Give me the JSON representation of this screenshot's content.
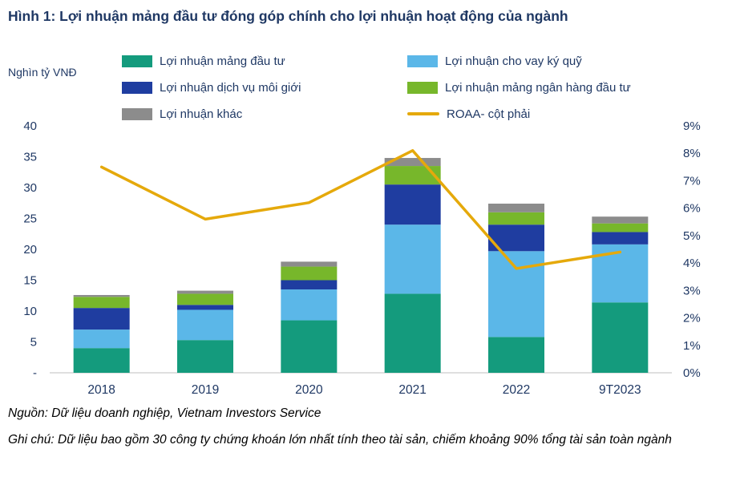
{
  "title": "Hình 1: Lợi nhuận mảng đầu tư đóng góp chính cho lợi nhuận hoạt động của ngành",
  "unit_label": "Nghìn tỷ VNĐ",
  "notes": {
    "source": "Nguồn: Dữ liệu doanh nghiệp, Vietnam Investors Service",
    "detail": "Ghi chú: Dữ liệu bao gồm 30 công ty chứng khoán lớn nhất tính theo tài sản, chiếm khoảng 90% tổng tài sản toàn ngành"
  },
  "colors": {
    "title_text": "#1F3864",
    "axis_text": "#1F3864",
    "baseline": "#BFBFBF",
    "investment": "#149B7D",
    "margin_lending": "#5BB7E8",
    "brokerage": "#1F3DA0",
    "investment_banking": "#77B72B",
    "other": "#8C8C8C",
    "roaa_line": "#E5A90B"
  },
  "legend": {
    "columns": [
      [
        {
          "label": "Lợi nhuận mảng đầu tư",
          "color": "#149B7D",
          "type": "rect"
        },
        {
          "label": "Lợi nhuận dịch vụ môi giới",
          "color": "#1F3DA0",
          "type": "rect"
        },
        {
          "label": "Lợi nhuận khác",
          "color": "#8C8C8C",
          "type": "rect"
        }
      ],
      [
        {
          "label": "Lợi nhuận cho vay ký quỹ",
          "color": "#5BB7E8",
          "type": "rect"
        },
        {
          "label": "Lợi nhuận mảng ngân hàng đầu tư",
          "color": "#77B72B",
          "type": "rect"
        },
        {
          "label": "ROAA- cột phải",
          "color": "#E5A90B",
          "type": "line"
        }
      ]
    ]
  },
  "chart_data": {
    "type": "bar",
    "subtype": "stacked-column-with-line",
    "title": "Hình 1: Lợi nhuận mảng đầu tư đóng góp chính cho lợi nhuận hoạt động của ngành",
    "categories": [
      "2018",
      "2019",
      "2020",
      "2021",
      "2022",
      "9T2023"
    ],
    "series": [
      {
        "name": "Lợi nhuận mảng đầu tư",
        "color": "#149B7D",
        "values": [
          4.0,
          5.3,
          8.5,
          12.8,
          5.8,
          11.4
        ]
      },
      {
        "name": "Lợi nhuận cho vay ký quỹ",
        "color": "#5BB7E8",
        "values": [
          3.0,
          4.9,
          5.0,
          11.2,
          13.9,
          9.4
        ]
      },
      {
        "name": "Lợi nhuận dịch vụ môi giới",
        "color": "#1F3DA0",
        "values": [
          3.5,
          0.8,
          1.5,
          6.5,
          4.3,
          2.0
        ]
      },
      {
        "name": "Lợi nhuận mảng ngân hàng đầu tư",
        "color": "#77B72B",
        "values": [
          1.8,
          1.8,
          2.2,
          3.0,
          2.0,
          1.4
        ]
      },
      {
        "name": "Lợi nhuận khác",
        "color": "#8C8C8C",
        "values": [
          0.3,
          0.5,
          0.8,
          1.3,
          1.4,
          1.1
        ]
      }
    ],
    "line_series": {
      "name": "ROAA- cột phải",
      "color": "#E5A90B",
      "axis": "right",
      "values_percent": [
        7.5,
        5.6,
        6.2,
        8.1,
        3.8,
        4.4
      ]
    },
    "left_axis": {
      "title": "Nghìn tỷ VNĐ",
      "min": 0,
      "max": 40,
      "ticks": [
        "40",
        "35",
        "30",
        "25",
        "20",
        "15",
        "10",
        "5",
        "-"
      ]
    },
    "right_axis": {
      "min": 0,
      "max": 9,
      "ticks": [
        "9%",
        "8%",
        "7%",
        "6%",
        "5%",
        "4%",
        "3%",
        "2%",
        "1%",
        "0%"
      ]
    },
    "grid": false,
    "legend_position": "top"
  }
}
